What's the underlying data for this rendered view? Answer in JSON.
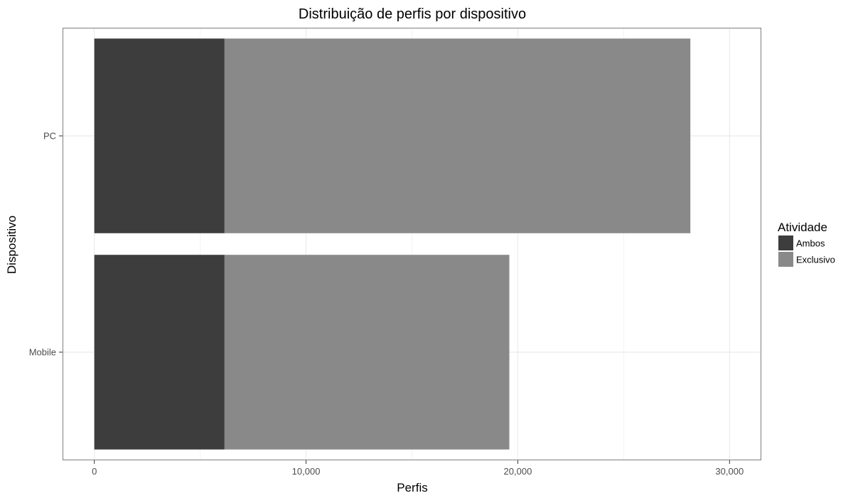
{
  "chart_data": {
    "type": "bar",
    "orientation": "horizontal",
    "stacked": true,
    "title": "Distribuição de perfis por dispositivo",
    "xlabel": "Perfis",
    "ylabel": "Dispositivo",
    "categories": [
      "PC",
      "Mobile"
    ],
    "series": [
      {
        "name": "Ambos",
        "color": "#3d3d3d",
        "values": [
          6150,
          6150
        ]
      },
      {
        "name": "Exclusivo",
        "color": "#898989",
        "values": [
          22000,
          13450
        ]
      }
    ],
    "xlim": [
      -1500,
      31500
    ],
    "x_ticks": [
      0,
      10000,
      20000,
      30000
    ],
    "x_tick_labels": [
      "0",
      "10,000",
      "20,000",
      "30,000"
    ],
    "grid": true,
    "legend": {
      "title": "Atividade",
      "placement": "right"
    }
  }
}
